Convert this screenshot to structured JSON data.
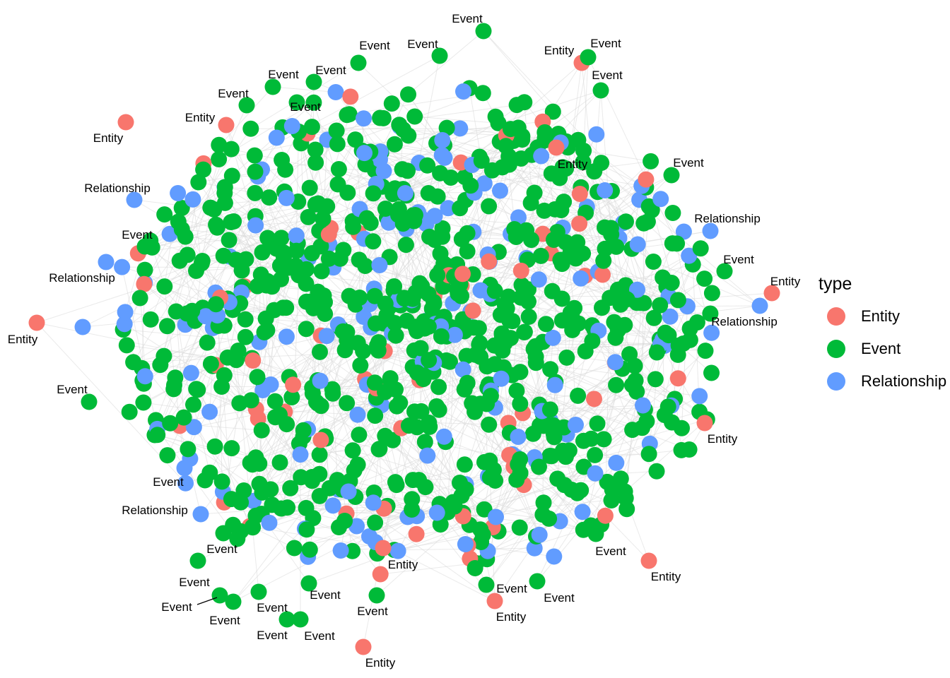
{
  "legend": {
    "title": "type",
    "items": [
      {
        "key": "entity",
        "label": "Entity",
        "color": "#F8766D"
      },
      {
        "key": "event",
        "label": "Event",
        "color": "#00BA38"
      },
      {
        "key": "relationship",
        "label": "Relationship",
        "color": "#619CFF"
      }
    ]
  },
  "colors": {
    "edge": "#d9d9d9",
    "entity": "#F8766D",
    "event": "#00BA38",
    "relationship": "#619CFF"
  },
  "graph": {
    "node_counts": {
      "entity": 60,
      "event": 700,
      "relationship": 180
    },
    "node_labels": [
      "Event",
      "Event",
      "Entity",
      "Event",
      "Event",
      "Event",
      "Event",
      "Event",
      "Event",
      "Entity",
      "Event",
      "Entity",
      "Entity",
      "Event",
      "Relationship",
      "Relationship",
      "Event",
      "Relationship",
      "Event",
      "Relationship",
      "Entity",
      "Entity",
      "Relationship",
      "Event",
      "Entity",
      "Event",
      "Relationship",
      "Event",
      "Event",
      "Event",
      "Event",
      "Event",
      "Event",
      "Event",
      "Event",
      "Entity",
      "Event",
      "Entity",
      "Event",
      "Entity",
      "Event",
      "Entity",
      "Event"
    ]
  }
}
